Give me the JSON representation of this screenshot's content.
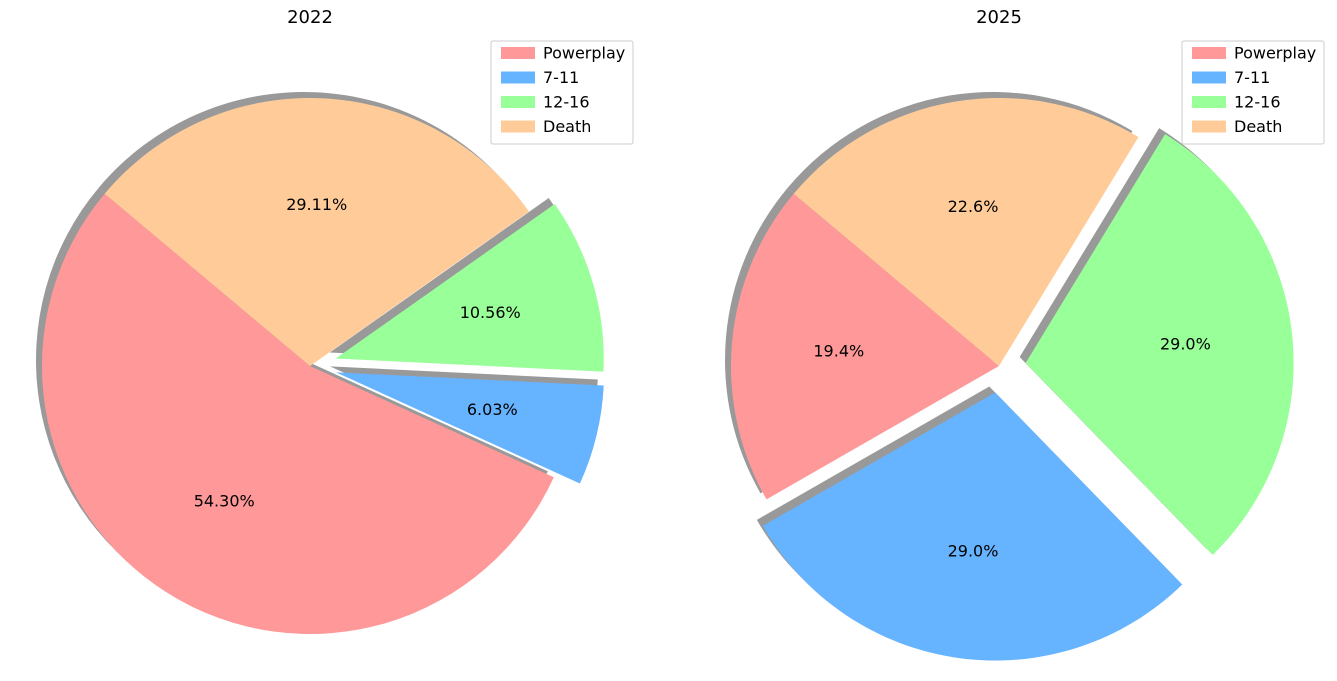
{
  "chart_data": [
    {
      "type": "pie",
      "title": "2022",
      "categories": [
        "Powerplay",
        "7-11",
        "12-16",
        "Death"
      ],
      "values": [
        54.3,
        6.03,
        10.56,
        29.11
      ],
      "labels": [
        "54.30%",
        "6.03%",
        "10.56%",
        "29.11%"
      ],
      "colors": [
        "#ff9999",
        "#66b3ff",
        "#99ff99",
        "#ffcc99"
      ],
      "exploded": [
        "7-11",
        "12-16"
      ],
      "shadow": true,
      "legend": {
        "entries": [
          "Powerplay",
          "7-11",
          "12-16",
          "Death"
        ],
        "loc": "upper right"
      }
    },
    {
      "type": "pie",
      "title": "2025",
      "categories": [
        "Powerplay",
        "7-11",
        "12-16",
        "Death"
      ],
      "values": [
        19.4,
        29.0,
        29.0,
        22.6
      ],
      "labels": [
        "19.4%",
        "29.0%",
        "29.0%",
        "22.6%"
      ],
      "colors": [
        "#ff9999",
        "#66b3ff",
        "#99ff99",
        "#ffcc99"
      ],
      "exploded": [
        "7-11",
        "12-16"
      ],
      "shadow": true,
      "legend": {
        "entries": [
          "Powerplay",
          "7-11",
          "12-16",
          "Death"
        ],
        "loc": "upper right"
      }
    }
  ]
}
